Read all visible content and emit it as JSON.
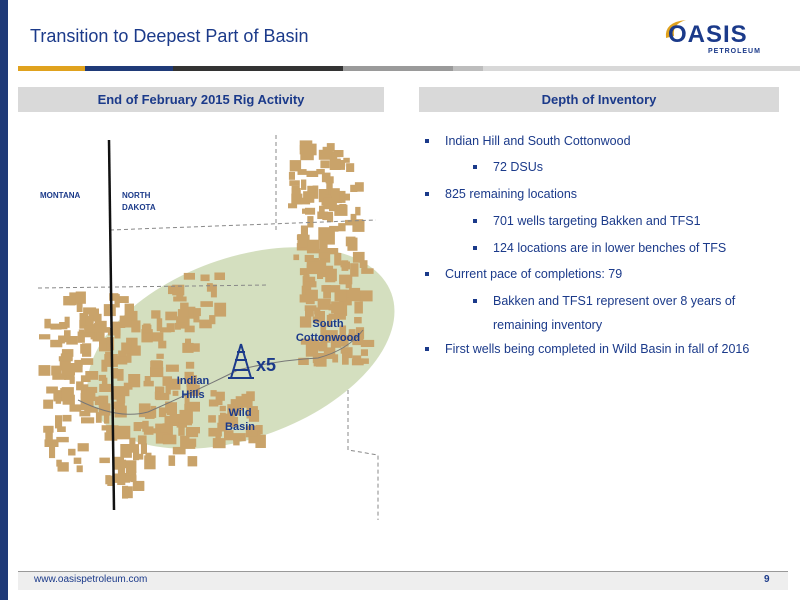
{
  "header": {
    "title": "Transition to Deepest Part of Basin",
    "logo": {
      "main": "OASIS",
      "sub": "PETROLEUM"
    }
  },
  "left_panel": {
    "heading": "End of February 2015 Rig Activity",
    "map": {
      "state_labels": {
        "montana": "MONTANA",
        "north_dakota_1": "NORTH",
        "north_dakota_2": "DAKOTA"
      },
      "area_labels": {
        "south_cottonwood_1": "South",
        "south_cottonwood_2": "Cottonwood",
        "indian_hills_1": "Indian",
        "indian_hills_2": "Hills",
        "wild_basin_1": "Wild",
        "wild_basin_2": "Basin"
      },
      "rig_count": "x5"
    }
  },
  "right_panel": {
    "heading": "Depth of Inventory",
    "bullets": [
      {
        "text": "Indian Hill and South Cottonwood",
        "level": 1
      },
      {
        "text": "72 DSUs",
        "level": 2
      },
      {
        "text": "825 remaining locations",
        "level": 1
      },
      {
        "text": "701 wells targeting Bakken and TFS1",
        "level": 2
      },
      {
        "text": "124 locations are in lower benches of TFS",
        "level": 2
      },
      {
        "text": "Current pace of completions: 79",
        "level": 1
      },
      {
        "text": "Bakken and TFS1 represent over 8 years of",
        "level": 2
      },
      {
        "text": "remaining inventory",
        "level": 2,
        "continuation": true
      },
      {
        "text": "First wells being completed in Wild Basin in fall of 2016",
        "level": 1
      }
    ]
  },
  "footer": {
    "url": "www.oasispetroleum.com",
    "page": "9"
  },
  "colors": {
    "brand_blue": "#1b3a8a",
    "acreage_tan": "#c9a36a",
    "area_green": "#cfdcb8",
    "logo_gold": "#e0a21e",
    "heading_gray": "#d9d9d9"
  }
}
